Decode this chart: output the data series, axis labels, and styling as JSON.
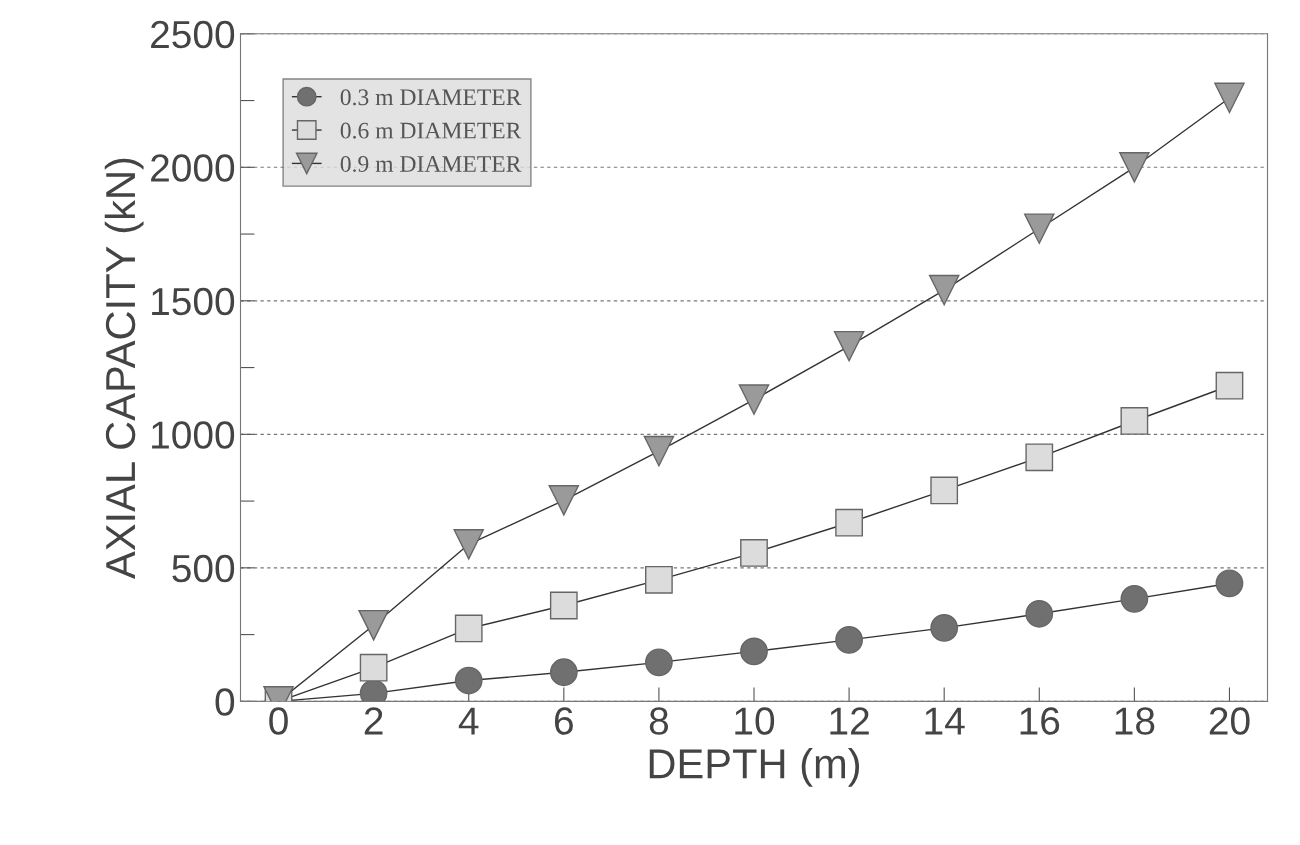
{
  "chart_data": {
    "type": "line",
    "xlabel": "DEPTH (m)",
    "ylabel": "AXIAL CAPACITY (kN)",
    "x": [
      0,
      2,
      4,
      6,
      8,
      10,
      12,
      14,
      16,
      18,
      20
    ],
    "series": [
      {
        "name": "0.3 m DIAMETER",
        "color": "#707070",
        "marker": "circle",
        "values": [
          0,
          30,
          78,
          109,
          146,
          187,
          230,
          275,
          328,
          384,
          442
        ]
      },
      {
        "name": "0.6 m DIAMETER",
        "color": "#dcdcdc",
        "marker": "square",
        "values": [
          0,
          126,
          273,
          359,
          455,
          556,
          669,
          790,
          914,
          1050,
          1182
        ]
      },
      {
        "name": "0.9 m DIAMETER",
        "color": "#9a9a9a",
        "marker": "triangle",
        "values": [
          0,
          285,
          588,
          753,
          937,
          1130,
          1330,
          1540,
          1770,
          2000,
          2260
        ]
      }
    ],
    "xlim": [
      -0.8,
      20.8
    ],
    "xticks": [
      0,
      2,
      4,
      6,
      8,
      10,
      12,
      14,
      16,
      18,
      20
    ],
    "ylim": [
      0,
      2500
    ],
    "yticks": [
      0,
      {
        "value": 250,
        "label": null
      },
      500,
      {
        "value": 750,
        "label": null
      },
      1000,
      {
        "value": 1250,
        "label": null
      },
      1500,
      {
        "value": 1750,
        "label": null
      },
      2000,
      {
        "value": 2250,
        "label": null
      },
      2500
    ],
    "grid": "y",
    "legend": "top left"
  }
}
